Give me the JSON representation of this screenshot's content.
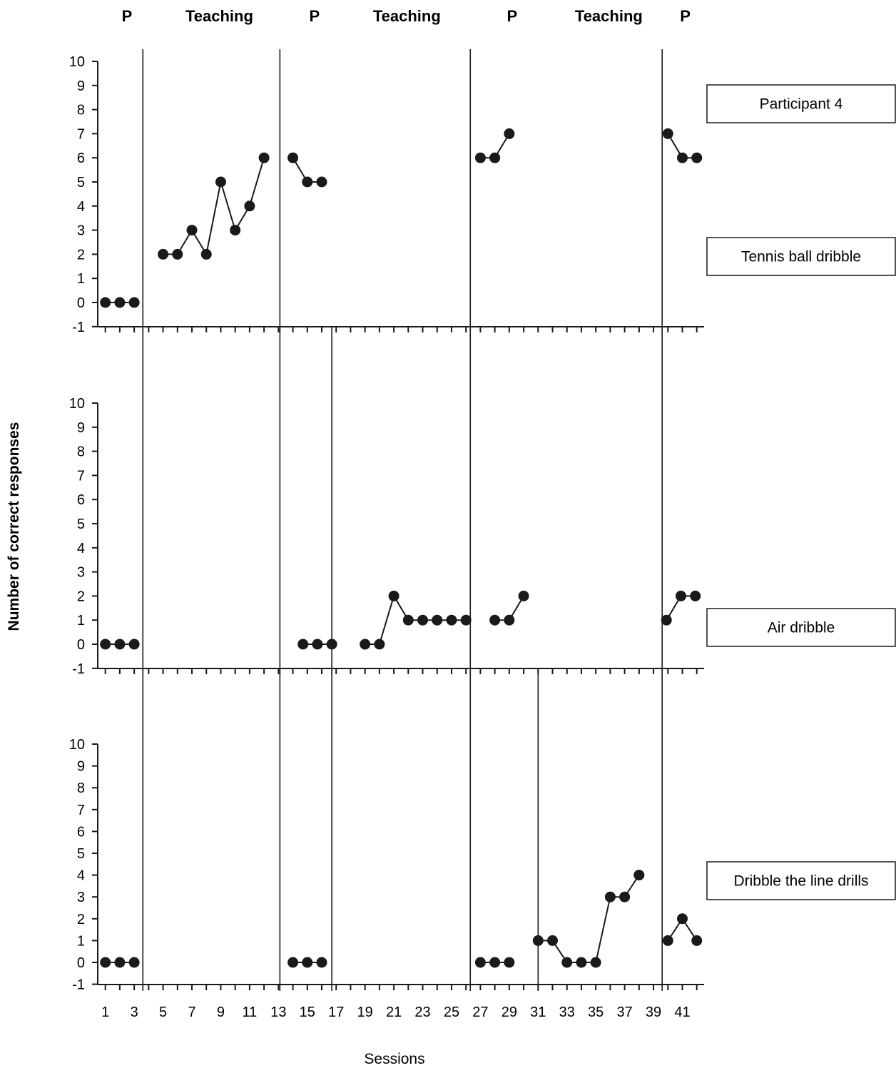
{
  "chart_data": {
    "type": "line",
    "ylabel": "Number of correct responses",
    "xlabel": "Sessions",
    "ylim": [
      -1,
      10
    ],
    "yticks": [
      -1,
      0,
      1,
      2,
      3,
      4,
      5,
      6,
      7,
      8,
      9,
      10
    ],
    "xlim": [
      0.5,
      42.6
    ],
    "xtick_labels": [
      1,
      3,
      5,
      7,
      9,
      11,
      13,
      15,
      17,
      19,
      21,
      23,
      25,
      27,
      29,
      31,
      33,
      35,
      37,
      39,
      41
    ],
    "legend": "Participant 4",
    "phases": [
      {
        "label": "P",
        "x": 2.5
      },
      {
        "label": "Teaching",
        "x": 8.9
      },
      {
        "label": "P",
        "x": 15.5
      },
      {
        "label": "Teaching",
        "x": 21.9
      },
      {
        "label": "P",
        "x": 29.2
      },
      {
        "label": "Teaching",
        "x": 35.9
      },
      {
        "label": "P",
        "x": 41.2
      }
    ],
    "panels": [
      {
        "name": "Tennis ball dribble",
        "phase_lines": [
          3.6,
          13.1,
          26.3,
          39.6
        ],
        "segments": [
          [
            {
              "x": 1,
              "y": 0
            },
            {
              "x": 2,
              "y": 0
            },
            {
              "x": 3,
              "y": 0
            }
          ],
          [
            {
              "x": 5,
              "y": 2
            },
            {
              "x": 6,
              "y": 2
            },
            {
              "x": 7,
              "y": 3
            },
            {
              "x": 8,
              "y": 2
            },
            {
              "x": 9,
              "y": 5
            },
            {
              "x": 10,
              "y": 3
            },
            {
              "x": 11,
              "y": 4
            },
            {
              "x": 12,
              "y": 6
            }
          ],
          [
            {
              "x": 14,
              "y": 6
            },
            {
              "x": 15,
              "y": 5
            },
            {
              "x": 16,
              "y": 5
            }
          ],
          [
            {
              "x": 27,
              "y": 6
            },
            {
              "x": 28,
              "y": 6
            },
            {
              "x": 29,
              "y": 7
            }
          ],
          [
            {
              "x": 40,
              "y": 7
            },
            {
              "x": 41,
              "y": 6
            },
            {
              "x": 42,
              "y": 6
            }
          ]
        ]
      },
      {
        "name": "Air dribble",
        "phase_lines": [
          3.6,
          13.1,
          16.7,
          26.3,
          39.6
        ],
        "segments": [
          [
            {
              "x": 1,
              "y": 0
            },
            {
              "x": 2,
              "y": 0
            },
            {
              "x": 3,
              "y": 0
            }
          ],
          [
            {
              "x": 14.7,
              "y": 0
            },
            {
              "x": 15.7,
              "y": 0
            },
            {
              "x": 16.7,
              "y": 0
            }
          ],
          [
            {
              "x": 19,
              "y": 0
            },
            {
              "x": 20,
              "y": 0
            },
            {
              "x": 21,
              "y": 2
            },
            {
              "x": 22,
              "y": 1
            },
            {
              "x": 23,
              "y": 1
            },
            {
              "x": 24,
              "y": 1
            },
            {
              "x": 25,
              "y": 1
            },
            {
              "x": 26,
              "y": 1
            }
          ],
          [
            {
              "x": 28,
              "y": 1
            },
            {
              "x": 29,
              "y": 1
            },
            {
              "x": 30,
              "y": 2
            }
          ],
          [
            {
              "x": 39.9,
              "y": 1
            },
            {
              "x": 40.9,
              "y": 2
            },
            {
              "x": 41.9,
              "y": 2
            }
          ]
        ]
      },
      {
        "name": "Dribble the line drills",
        "phase_lines": [
          3.6,
          13.1,
          16.7,
          26.3,
          31.0,
          39.6
        ],
        "segments": [
          [
            {
              "x": 1,
              "y": 0
            },
            {
              "x": 2,
              "y": 0
            },
            {
              "x": 3,
              "y": 0
            }
          ],
          [
            {
              "x": 14,
              "y": 0
            },
            {
              "x": 15,
              "y": 0
            },
            {
              "x": 16,
              "y": 0
            }
          ],
          [
            {
              "x": 27,
              "y": 0
            },
            {
              "x": 28,
              "y": 0
            },
            {
              "x": 29,
              "y": 0
            }
          ],
          [
            {
              "x": 31,
              "y": 1
            },
            {
              "x": 32,
              "y": 1
            },
            {
              "x": 33,
              "y": 0
            },
            {
              "x": 34,
              "y": 0
            },
            {
              "x": 35,
              "y": 0
            },
            {
              "x": 36,
              "y": 3
            },
            {
              "x": 37,
              "y": 3
            },
            {
              "x": 38,
              "y": 4
            }
          ],
          [
            {
              "x": 40,
              "y": 1
            },
            {
              "x": 41,
              "y": 2
            },
            {
              "x": 42,
              "y": 1
            }
          ]
        ]
      }
    ]
  }
}
